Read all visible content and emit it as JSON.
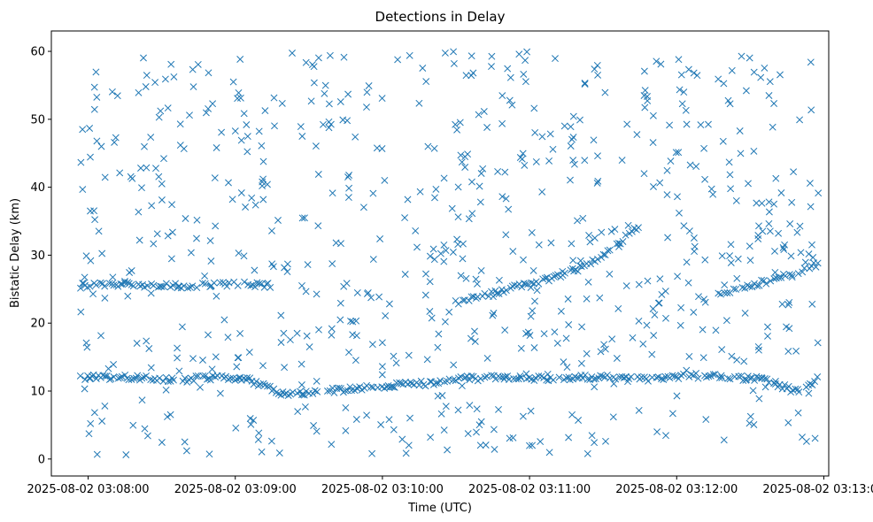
{
  "chart_data": {
    "type": "scatter",
    "title": "Detections in Delay",
    "xlabel": "Time (UTC)",
    "ylabel": "Bistatic Delay (km)",
    "marker": "x",
    "color": "#1f77b4",
    "grid": false,
    "x_unit": "UTC time",
    "xlim": [
      "2025-08-02 03:07:45",
      "2025-08-02 03:13:02"
    ],
    "ylim": [
      -2.5,
      63
    ],
    "xticks": [
      "2025-08-02 03:08:00",
      "2025-08-02 03:09:00",
      "2025-08-02 03:10:00",
      "2025-08-02 03:11:00",
      "2025-08-02 03:12:00",
      "2025-08-02 03:13:00"
    ],
    "yticks": [
      0,
      10,
      20,
      30,
      40,
      50,
      60
    ],
    "tracks": [
      {
        "description": "constant-delay track",
        "x": [
          "2025-08-02 03:07:57",
          "2025-08-02 03:08:05",
          "2025-08-02 03:08:20",
          "2025-08-02 03:08:35",
          "2025-08-02 03:08:50",
          "2025-08-02 03:09:05",
          "2025-08-02 03:09:20",
          "2025-08-02 03:09:35",
          "2025-08-02 03:09:50",
          "2025-08-02 03:10:05",
          "2025-08-02 03:10:20",
          "2025-08-02 03:10:30",
          "2025-08-02 03:10:50",
          "2025-08-02 03:11:05",
          "2025-08-02 03:11:20",
          "2025-08-02 03:11:35",
          "2025-08-02 03:11:50",
          "2025-08-02 03:12:05",
          "2025-08-02 03:12:20",
          "2025-08-02 03:12:35",
          "2025-08-02 03:12:50",
          "2025-08-02 03:12:58"
        ],
        "y": [
          12.0,
          12.0,
          12.0,
          11.5,
          12.0,
          11.8,
          9.5,
          10.0,
          10.3,
          10.8,
          11.2,
          11.8,
          12.0,
          11.8,
          12.0,
          12.0,
          11.8,
          12.3,
          12.0,
          11.8,
          9.8,
          12.0
        ]
      },
      {
        "description": "first rising track",
        "x": [
          "2025-08-02 03:07:57",
          "2025-08-02 03:08:15",
          "2025-08-02 03:08:30",
          "2025-08-02 03:08:45",
          "2025-08-02 03:09:00",
          "2025-08-02 03:09:15"
        ],
        "y": [
          25.5,
          25.8,
          25.5,
          25.5,
          25.8,
          25.5
        ]
      },
      {
        "description": "second rising track",
        "x": [
          "2025-08-02 03:10:30",
          "2025-08-02 03:10:45",
          "2025-08-02 03:11:00",
          "2025-08-02 03:11:15",
          "2025-08-02 03:11:30",
          "2025-08-02 03:11:45"
        ],
        "y": [
          23.0,
          24.3,
          25.8,
          27.2,
          29.8,
          34.5
        ]
      },
      {
        "description": "third rising track",
        "x": [
          "2025-08-02 03:12:17",
          "2025-08-02 03:12:30",
          "2025-08-02 03:12:45",
          "2025-08-02 03:12:58"
        ],
        "y": [
          24.3,
          25.5,
          27.0,
          28.8
        ]
      }
    ],
    "background_noise": {
      "description": "uniformly scattered false detections",
      "y_range": [
        0.5,
        60
      ]
    }
  }
}
